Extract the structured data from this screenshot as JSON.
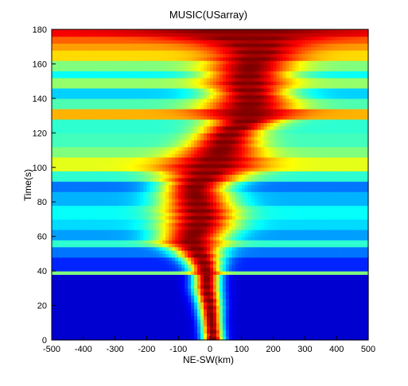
{
  "chart_data": {
    "type": "heatmap",
    "title": "MUSIC(USarray)",
    "xlabel": "NE-SW(km)",
    "ylabel": "Time(s)",
    "xlim": [
      -500,
      500
    ],
    "ylim": [
      0,
      180
    ],
    "x_ticks": [
      -500,
      -400,
      -300,
      -200,
      -100,
      0,
      100,
      200,
      300,
      400,
      500
    ],
    "y_ticks": [
      0,
      20,
      40,
      60,
      80,
      100,
      120,
      140,
      160,
      180
    ],
    "colormap": "jet",
    "grid": false,
    "peak_track": {
      "time": [
        0,
        10,
        20,
        30,
        38,
        45,
        52,
        58,
        65,
        72,
        80,
        88,
        95,
        100,
        105,
        112,
        120,
        128,
        133,
        140,
        147,
        154,
        160,
        166,
        172,
        178,
        180
      ],
      "center_km": [
        10,
        5,
        0,
        -10,
        -10,
        -20,
        -40,
        -60,
        -40,
        -30,
        -40,
        -50,
        -20,
        0,
        20,
        40,
        60,
        120,
        120,
        130,
        120,
        120,
        130,
        150,
        140,
        100,
        100
      ],
      "width_km": [
        35,
        35,
        40,
        45,
        45,
        60,
        80,
        110,
        120,
        120,
        120,
        110,
        130,
        160,
        150,
        120,
        100,
        120,
        160,
        140,
        130,
        140,
        140,
        140,
        170,
        300,
        320
      ]
    },
    "background_bands": [
      {
        "time": [
          0,
          38
        ],
        "level": 0.08
      },
      {
        "time": [
          38,
          40
        ],
        "level": 0.5
      },
      {
        "time": [
          40,
          47
        ],
        "level": 0.16
      },
      {
        "time": [
          47,
          54
        ],
        "level": 0.24
      },
      {
        "time": [
          54,
          58
        ],
        "level": 0.42
      },
      {
        "time": [
          58,
          64
        ],
        "level": 0.28
      },
      {
        "time": [
          64,
          70
        ],
        "level": 0.34
      },
      {
        "time": [
          70,
          78
        ],
        "level": 0.38
      },
      {
        "time": [
          78,
          86
        ],
        "level": 0.3
      },
      {
        "time": [
          86,
          92
        ],
        "level": 0.24
      },
      {
        "time": [
          92,
          98
        ],
        "level": 0.42
      },
      {
        "time": [
          98,
          106
        ],
        "level": 0.6
      },
      {
        "time": [
          106,
          112
        ],
        "level": 0.5
      },
      {
        "time": [
          112,
          120
        ],
        "level": 0.44
      },
      {
        "time": [
          120,
          128
        ],
        "level": 0.42
      },
      {
        "time": [
          128,
          134
        ],
        "level": 0.7
      },
      {
        "time": [
          134,
          140
        ],
        "level": 0.45
      },
      {
        "time": [
          140,
          146
        ],
        "level": 0.33
      },
      {
        "time": [
          146,
          152
        ],
        "level": 0.52
      },
      {
        "time": [
          152,
          156
        ],
        "level": 0.38
      },
      {
        "time": [
          156,
          162
        ],
        "level": 0.5
      },
      {
        "time": [
          162,
          168
        ],
        "level": 0.66
      },
      {
        "time": [
          168,
          172
        ],
        "level": 0.72
      },
      {
        "time": [
          172,
          176
        ],
        "level": 0.78
      },
      {
        "time": [
          176,
          180
        ],
        "level": 0.88
      }
    ]
  }
}
